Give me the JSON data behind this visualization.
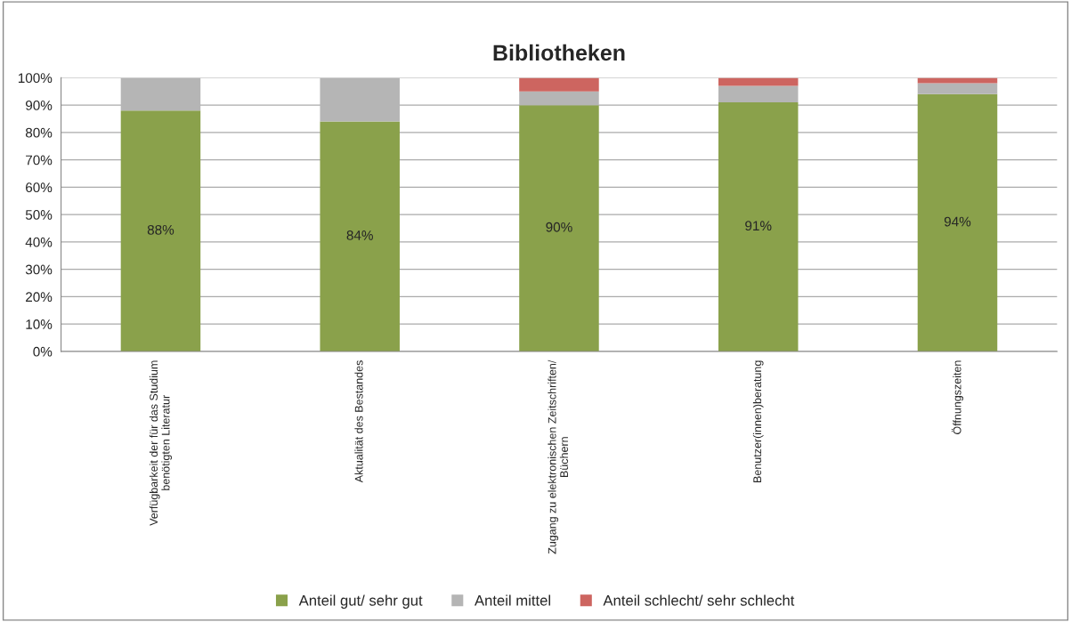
{
  "chart_data": {
    "type": "bar",
    "title": "Bibliotheken",
    "stacked": true,
    "categories": [
      "Verfügbarkeit der für das Studium\nbenötigten Literatur",
      "Aktualität des Bestandes",
      "Zugang zu elektronischen Zeitschriften/\nBüchern",
      "Benutzer(innen)beratung",
      "Öffnungszeiten"
    ],
    "series": [
      {
        "name": "Anteil gut/ sehr gut",
        "color": "#8aa14b",
        "values": [
          88,
          84,
          90,
          91,
          94
        ],
        "value_labels": [
          "88%",
          "84%",
          "90%",
          "91%",
          "94%"
        ]
      },
      {
        "name": "Anteil mittel",
        "color": "#b5b5b5",
        "values": [
          12,
          16,
          5,
          6,
          4
        ]
      },
      {
        "name": "Anteil schlecht/ sehr schlecht",
        "color": "#cd6560",
        "values": [
          null,
          null,
          5,
          3,
          2
        ]
      }
    ],
    "ylim": [
      0,
      100
    ],
    "yticks": [
      {
        "value": 0,
        "label": "0%"
      },
      {
        "value": 10,
        "label": "10%"
      },
      {
        "value": 20,
        "label": "20%"
      },
      {
        "value": 30,
        "label": "30%"
      },
      {
        "value": 40,
        "label": "40%"
      },
      {
        "value": 50,
        "label": "50%"
      },
      {
        "value": 60,
        "label": "60%"
      },
      {
        "value": 70,
        "label": "70%"
      },
      {
        "value": 80,
        "label": "80%"
      },
      {
        "value": 90,
        "label": "90%"
      },
      {
        "value": 100,
        "label": "100%"
      }
    ],
    "grid": "y",
    "legend": "bottom"
  }
}
